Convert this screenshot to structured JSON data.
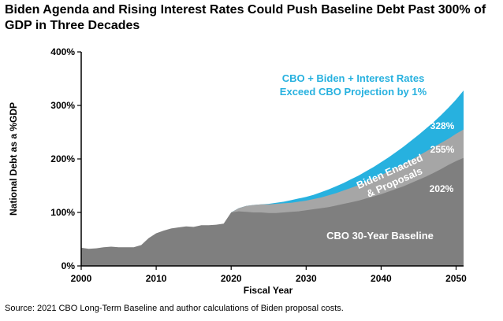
{
  "header": {
    "title": "Biden Agenda and Rising Interest Rates Could Push Baseline Debt Past 300% of GDP in Three Decades"
  },
  "footer": {
    "source": "Source: 2021 CBO Long-Term Baseline and author calculations of Biden proposal costs."
  },
  "chart_data": {
    "type": "area",
    "title": "Biden Agenda and Rising Interest Rates Could Push Baseline Debt Past 300% of GDP in Three Decades",
    "xlabel": "Fiscal Year",
    "ylabel": "National Debt as a %GDP",
    "xlim": [
      2000,
      2051
    ],
    "ylim": [
      0,
      400
    ],
    "x_ticks": [
      "2000",
      "2010",
      "2020",
      "2030",
      "2040",
      "2050"
    ],
    "y_ticks": [
      "0%",
      "100%",
      "200%",
      "300%",
      "400%"
    ],
    "grid": false,
    "legend": "none",
    "colors": {
      "baseline": "#7f7f7f",
      "biden": "#a6a6a6",
      "rates": "#27b1df"
    },
    "series": [
      {
        "name": "CBO 30-Year Baseline",
        "x": [
          2000,
          2001,
          2002,
          2003,
          2004,
          2005,
          2006,
          2007,
          2008,
          2009,
          2010,
          2011,
          2012,
          2013,
          2014,
          2015,
          2016,
          2017,
          2018,
          2019,
          2020,
          2021,
          2022,
          2023,
          2024,
          2025,
          2026,
          2027,
          2028,
          2029,
          2030,
          2031,
          2032,
          2033,
          2034,
          2035,
          2036,
          2037,
          2038,
          2039,
          2040,
          2041,
          2042,
          2043,
          2044,
          2045,
          2046,
          2047,
          2048,
          2049,
          2050,
          2051
        ],
        "values": [
          34,
          32,
          33,
          35,
          36,
          35,
          35,
          35,
          39,
          52,
          61,
          66,
          70,
          72,
          74,
          73,
          76,
          76,
          77,
          79,
          100,
          102,
          101,
          100,
          100,
          99,
          99,
          100,
          101,
          102,
          104,
          106,
          108,
          110,
          113,
          116,
          119,
          122,
          126,
          130,
          134,
          139,
          144,
          149,
          155,
          161,
          167,
          174,
          181,
          189,
          196,
          202
        ]
      },
      {
        "name": "Biden Enacted & Proposals",
        "x": [
          2020,
          2021,
          2022,
          2023,
          2024,
          2025,
          2026,
          2027,
          2028,
          2029,
          2030,
          2031,
          2032,
          2033,
          2034,
          2035,
          2036,
          2037,
          2038,
          2039,
          2040,
          2041,
          2042,
          2043,
          2044,
          2045,
          2046,
          2047,
          2048,
          2049,
          2050,
          2051
        ],
        "values": [
          100,
          108,
          112,
          114,
          115,
          115,
          116,
          117,
          118,
          120,
          122,
          125,
          128,
          132,
          136,
          141,
          146,
          151,
          157,
          163,
          170,
          176,
          183,
          190,
          198,
          206,
          214,
          222,
          230,
          238,
          247,
          255
        ]
      },
      {
        "name": "CBO + Biden + Interest Rates Exceed CBO Projection by 1%",
        "x": [
          2020,
          2021,
          2022,
          2023,
          2024,
          2025,
          2026,
          2027,
          2028,
          2029,
          2030,
          2031,
          2032,
          2033,
          2034,
          2035,
          2036,
          2037,
          2038,
          2039,
          2040,
          2041,
          2042,
          2043,
          2044,
          2045,
          2046,
          2047,
          2048,
          2049,
          2050,
          2051
        ],
        "values": [
          100,
          108,
          112,
          114,
          115,
          116,
          118,
          120,
          123,
          126,
          129,
          133,
          138,
          143,
          149,
          155,
          162,
          169,
          177,
          185,
          194,
          203,
          213,
          223,
          234,
          245,
          257,
          269,
          282,
          296,
          311,
          328
        ]
      }
    ],
    "annotations": {
      "rates_line1": "CBO + Biden + Interest Rates",
      "rates_line2": "Exceed CBO Projection by 1%",
      "biden_line1": "Biden Enacted",
      "biden_line2": "& Proposals",
      "baseline_label": "CBO 30-Year Baseline",
      "end_rates": "328%",
      "end_biden": "255%",
      "end_baseline": "202%"
    }
  }
}
